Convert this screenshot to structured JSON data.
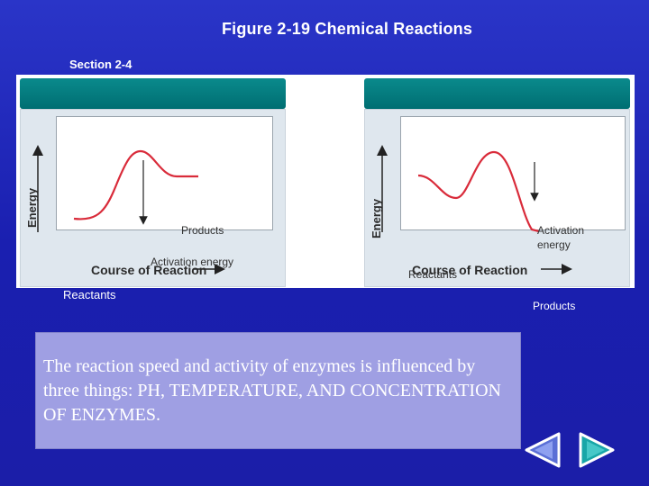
{
  "title": "Figure 2-19 Chemical Reactions",
  "section": "Section 2-4",
  "diagram": {
    "left_panel": {
      "y_axis_label": "Energy",
      "x_axis_label": "Course of Reaction",
      "labels": {
        "products": "Products",
        "activation_energy": "Activation energy",
        "reactants": "Reactants"
      }
    },
    "right_panel": {
      "y_axis_label": "Energy",
      "x_axis_label": "Course of Reaction",
      "labels": {
        "activation_energy": "Activation energy",
        "reactants": "Reactants",
        "products": "Products"
      }
    },
    "curve_color": "#d92b3a"
  },
  "text_box": {
    "content": "The reaction speed and activity of enzymes is influenced by three things: PH, TEMPERATURE, AND CONCENTRATION OF ENZYMES."
  },
  "navigation": {
    "back_icon": "chevron-left-icon",
    "forward_icon": "chevron-right-icon"
  }
}
